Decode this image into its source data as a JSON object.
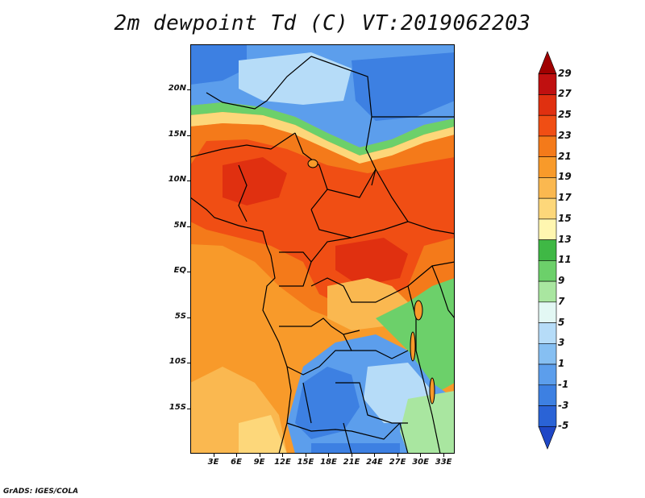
{
  "title": "2m dewpoint Td (C) VT:2019062203",
  "credit": "GrADS: IGES/COLA",
  "map": {
    "lon_range": [
      0,
      34.5
    ],
    "lat_range": [
      -20,
      25
    ],
    "lon_ticks": [
      3,
      6,
      9,
      12,
      15,
      18,
      21,
      24,
      27,
      30,
      33
    ],
    "lon_tick_labels": [
      "3E",
      "6E",
      "9E",
      "12E",
      "15E",
      "18E",
      "21E",
      "24E",
      "27E",
      "30E",
      "33E"
    ],
    "lat_ticks": [
      20,
      15,
      10,
      5,
      0,
      -5,
      -10,
      -15
    ],
    "lat_tick_labels": [
      "20N",
      "15N",
      "10N",
      "5N",
      "EQ",
      "5S",
      "10S",
      "15S"
    ]
  },
  "colorbar": {
    "levels": [
      "29",
      "27",
      "25",
      "23",
      "21",
      "19",
      "17",
      "15",
      "13",
      "11",
      "9",
      "7",
      "5",
      "3",
      "1",
      "-1",
      "-3",
      "-5"
    ],
    "colors": [
      "#a00000",
      "#c01010",
      "#e03010",
      "#f04e14",
      "#f47a1a",
      "#f89a2a",
      "#fab850",
      "#fdd77a",
      "#fff6b0",
      "#3fb845",
      "#6cd06a",
      "#a9e6a0",
      "#e3f8f4",
      "#b6dcf8",
      "#86bff2",
      "#5c9eec",
      "#3d80e2",
      "#2a63d6",
      "#1f47c6"
    ]
  }
}
